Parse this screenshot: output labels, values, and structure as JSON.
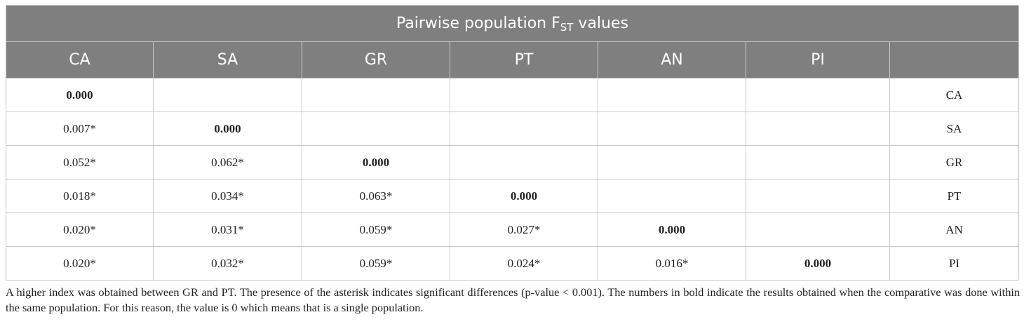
{
  "table": {
    "title_main": "Pairwise population F",
    "title_sub": "ST",
    "title_tail": " values",
    "columns": [
      "CA",
      "SA",
      "GR",
      "PT",
      "AN",
      "PI",
      ""
    ],
    "rows": [
      {
        "label": "CA",
        "cells": [
          {
            "v": "0.000",
            "b": true
          },
          {
            "v": ""
          },
          {
            "v": ""
          },
          {
            "v": ""
          },
          {
            "v": ""
          },
          {
            "v": ""
          }
        ]
      },
      {
        "label": "SA",
        "cells": [
          {
            "v": "0.007*"
          },
          {
            "v": "0.000",
            "b": true
          },
          {
            "v": ""
          },
          {
            "v": ""
          },
          {
            "v": ""
          },
          {
            "v": ""
          }
        ]
      },
      {
        "label": "GR",
        "cells": [
          {
            "v": "0.052*"
          },
          {
            "v": "0.062*"
          },
          {
            "v": "0.000",
            "b": true
          },
          {
            "v": ""
          },
          {
            "v": ""
          },
          {
            "v": ""
          }
        ]
      },
      {
        "label": "PT",
        "cells": [
          {
            "v": "0.018*"
          },
          {
            "v": "0.034*"
          },
          {
            "v": "0.063*"
          },
          {
            "v": "0.000",
            "b": true
          },
          {
            "v": ""
          },
          {
            "v": ""
          }
        ]
      },
      {
        "label": "AN",
        "cells": [
          {
            "v": "0.020*"
          },
          {
            "v": "0.031*"
          },
          {
            "v": "0.059*"
          },
          {
            "v": "0.027*"
          },
          {
            "v": "0.000",
            "b": true
          },
          {
            "v": ""
          }
        ]
      },
      {
        "label": "PI",
        "cells": [
          {
            "v": "0.020*"
          },
          {
            "v": "0.032*"
          },
          {
            "v": "0.059*"
          },
          {
            "v": "0.024*"
          },
          {
            "v": "0.016*"
          },
          {
            "v": "0.000",
            "b": true
          }
        ]
      }
    ]
  },
  "footnote": "A higher index was obtained between GR and PT. The presence of the asterisk indicates significant differences (p-value < 0.001). The numbers in bold indicate the results obtained when the comparative was done within the same population. For this reason, the value is 0 which means that is a single population.",
  "colors": {
    "header_bg": "#7f7f7f",
    "header_text": "#ffffff",
    "border": "#c9c9c9"
  }
}
